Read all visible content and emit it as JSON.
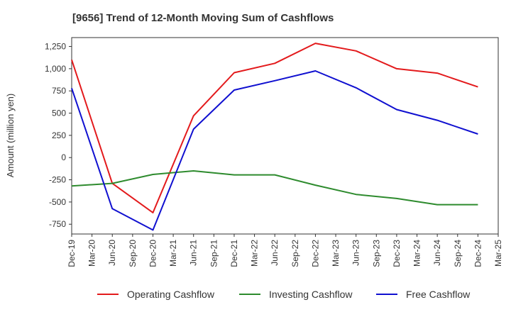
{
  "chart_data": {
    "type": "line",
    "title": "[9656]  Trend of 12-Month Moving Sum of Cashflows",
    "ylabel": "Amount (million yen)",
    "xlabel": "",
    "categories": [
      "Dec-19",
      "Mar-20",
      "Jun-20",
      "Sep-20",
      "Dec-20",
      "Mar-21",
      "Jun-21",
      "Sep-21",
      "Dec-21",
      "Mar-22",
      "Jun-22",
      "Sep-22",
      "Dec-22",
      "Mar-23",
      "Jun-23",
      "Sep-23",
      "Dec-23",
      "Mar-24",
      "Jun-24",
      "Sep-24",
      "Dec-24",
      "Mar-25"
    ],
    "ylim": [
      -860,
      1350
    ],
    "yticks": [
      -750,
      -500,
      -250,
      0,
      250,
      500,
      750,
      1000,
      1250
    ],
    "ytick_labels": [
      "-750",
      "-500",
      "-250",
      "0",
      "250",
      "500",
      "750",
      "1,000",
      "1,250"
    ],
    "grid": true,
    "legend_position": "bottom",
    "series": [
      {
        "name": "Operating Cashflow",
        "color": "#e31a1c",
        "values": [
          1100,
          null,
          -290,
          null,
          -620,
          null,
          470,
          null,
          955,
          null,
          1060,
          null,
          1285,
          null,
          1200,
          null,
          1000,
          null,
          950,
          null,
          795,
          null
        ]
      },
      {
        "name": "Investing Cashflow",
        "color": "#2e8b2e",
        "values": [
          -320,
          null,
          -290,
          null,
          -190,
          null,
          -150,
          null,
          -195,
          null,
          -195,
          null,
          -310,
          null,
          -415,
          null,
          -460,
          null,
          -530,
          null,
          -530,
          null
        ]
      },
      {
        "name": "Free Cashflow",
        "color": "#1010d0",
        "values": [
          780,
          null,
          -575,
          null,
          -815,
          null,
          320,
          null,
          760,
          null,
          865,
          null,
          975,
          null,
          785,
          null,
          540,
          null,
          420,
          null,
          265,
          null
        ]
      }
    ]
  }
}
